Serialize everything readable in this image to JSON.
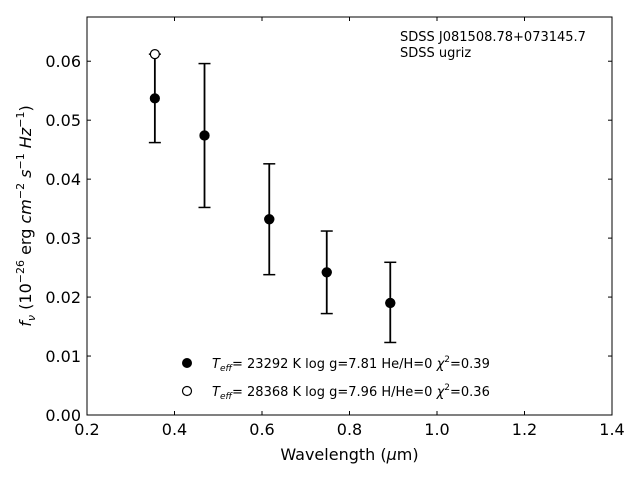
{
  "chart_data": {
    "type": "scatter",
    "xlabel_main": "Wavelength (",
    "xlabel_unit_mu": "μ",
    "xlabel_unit_rest": "m)",
    "ylabel": {
      "f": "f",
      "nu": "ν",
      "open": " (10",
      "exp26": "−26",
      "erg": " erg ",
      "cm": "cm",
      "exp2": "−2",
      "s": " s",
      "exp1a": "−1",
      "hz": " Hz",
      "exp1b": "−1",
      "close": ")"
    },
    "xlim": [
      0.2,
      1.4
    ],
    "ylim": [
      0.0,
      0.0675
    ],
    "xticks": [
      {
        "value": 0.2,
        "label": "0.2"
      },
      {
        "value": 0.4,
        "label": "0.4"
      },
      {
        "value": 0.6,
        "label": "0.6"
      },
      {
        "value": 0.8,
        "label": "0.8"
      },
      {
        "value": 1.0,
        "label": "1.0"
      },
      {
        "value": 1.2,
        "label": "1.2"
      },
      {
        "value": 1.4,
        "label": "1.4"
      }
    ],
    "yticks": [
      {
        "value": 0.0,
        "label": "0.00"
      },
      {
        "value": 0.01,
        "label": "0.01"
      },
      {
        "value": 0.02,
        "label": "0.02"
      },
      {
        "value": 0.03,
        "label": "0.03"
      },
      {
        "value": 0.04,
        "label": "0.04"
      },
      {
        "value": 0.05,
        "label": "0.05"
      },
      {
        "value": 0.06,
        "label": "0.06"
      }
    ],
    "observed": {
      "x": [
        0.3551,
        0.4686,
        0.6166,
        0.748,
        0.8932
      ],
      "y": [
        0.0537,
        0.0474,
        0.0332,
        0.0242,
        0.0191
      ],
      "err": [
        0.0075,
        0.0122,
        0.0094,
        0.007,
        0.0068
      ],
      "err_upper_clip": true
    },
    "series": [
      {
        "marker": "filled",
        "teff_T": "T",
        "teff_sub": "eff",
        "label_rest": "= 23292 K  log g=7.81  He/H=0  ",
        "chi_symbol": "χ",
        "chi_exp": "2",
        "chi_value": "=0.39",
        "points": [
          {
            "x": 0.3551,
            "y": 0.0537
          },
          {
            "x": 0.4686,
            "y": 0.0474
          },
          {
            "x": 0.6166,
            "y": 0.0332
          },
          {
            "x": 0.748,
            "y": 0.0242
          },
          {
            "x": 0.8932,
            "y": 0.019
          }
        ]
      },
      {
        "marker": "open",
        "teff_T": "T",
        "teff_sub": "eff",
        "label_rest": "= 28368 K  log g=7.96  H/He=0  ",
        "chi_symbol": "χ",
        "chi_exp": "2",
        "chi_value": "=0.36",
        "points": [
          {
            "x": 0.3551,
            "y": 0.0612
          },
          {
            "x": 0.4686,
            "y": 0.0474
          },
          {
            "x": 0.6166,
            "y": 0.0332
          },
          {
            "x": 0.748,
            "y": 0.0242
          },
          {
            "x": 0.8932,
            "y": 0.019
          }
        ]
      }
    ],
    "annotation": [
      "SDSS J081508.78+073145.7",
      "SDSS ugriz"
    ],
    "legend_position": "bottom-center"
  }
}
